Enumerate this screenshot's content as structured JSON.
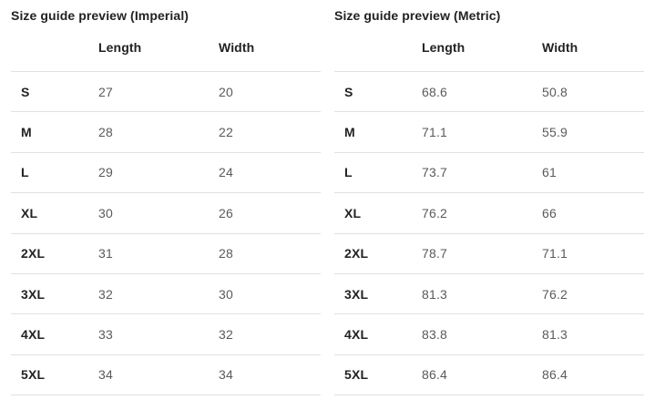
{
  "page": {
    "background": "#ffffff"
  },
  "colors": {
    "heading_text": "#222222",
    "value_text": "#5a5a5a",
    "divider": "#e0e0e0"
  },
  "tables": [
    {
      "id": "imperial",
      "title": "Size guide preview (Imperial)",
      "columns": {
        "size": "",
        "length": "Length",
        "width": "Width"
      },
      "rows": [
        {
          "size": "S",
          "length": "27",
          "width": "20"
        },
        {
          "size": "M",
          "length": "28",
          "width": "22"
        },
        {
          "size": "L",
          "length": "29",
          "width": "24"
        },
        {
          "size": "XL",
          "length": "30",
          "width": "26"
        },
        {
          "size": "2XL",
          "length": "31",
          "width": "28"
        },
        {
          "size": "3XL",
          "length": "32",
          "width": "30"
        },
        {
          "size": "4XL",
          "length": "33",
          "width": "32"
        },
        {
          "size": "5XL",
          "length": "34",
          "width": "34"
        }
      ]
    },
    {
      "id": "metric",
      "title": "Size guide preview (Metric)",
      "columns": {
        "size": "",
        "length": "Length",
        "width": "Width"
      },
      "rows": [
        {
          "size": "S",
          "length": "68.6",
          "width": "50.8"
        },
        {
          "size": "M",
          "length": "71.1",
          "width": "55.9"
        },
        {
          "size": "L",
          "length": "73.7",
          "width": "61"
        },
        {
          "size": "XL",
          "length": "76.2",
          "width": "66"
        },
        {
          "size": "2XL",
          "length": "78.7",
          "width": "71.1"
        },
        {
          "size": "3XL",
          "length": "81.3",
          "width": "76.2"
        },
        {
          "size": "4XL",
          "length": "83.8",
          "width": "81.3"
        },
        {
          "size": "5XL",
          "length": "86.4",
          "width": "86.4"
        }
      ]
    }
  ]
}
